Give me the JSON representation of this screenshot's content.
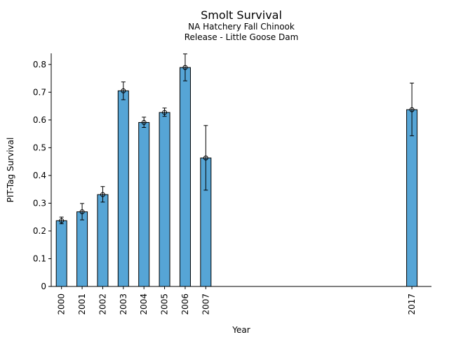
{
  "chart_data": {
    "type": "bar",
    "title": "Smolt Survival",
    "subtitle_lines": [
      "NA Hatchery Fall Chinook",
      "Release - Little Goose Dam"
    ],
    "xlabel": "Year",
    "ylabel": "PIT-Tag Survival",
    "ylim": [
      0,
      0.84
    ],
    "yticks": [
      0,
      0.1,
      0.2,
      0.3,
      0.4,
      0.5,
      0.6,
      0.7,
      0.8
    ],
    "xlim": [
      1999.5,
      2017.95
    ],
    "grid": false,
    "bar_color": "#56a5d6",
    "categories": [
      "2000",
      "2001",
      "2002",
      "2003",
      "2004",
      "2005",
      "2006",
      "2007",
      "2017"
    ],
    "x": [
      2000,
      2001,
      2002,
      2003,
      2004,
      2005,
      2006,
      2007,
      2017
    ],
    "values": [
      0.237,
      0.269,
      0.331,
      0.705,
      0.591,
      0.627,
      0.789,
      0.463,
      0.637
    ],
    "error_low": [
      0.226,
      0.24,
      0.304,
      0.673,
      0.573,
      0.613,
      0.741,
      0.347,
      0.543
    ],
    "error_high": [
      0.25,
      0.299,
      0.36,
      0.737,
      0.61,
      0.643,
      0.838,
      0.58,
      0.733
    ]
  }
}
